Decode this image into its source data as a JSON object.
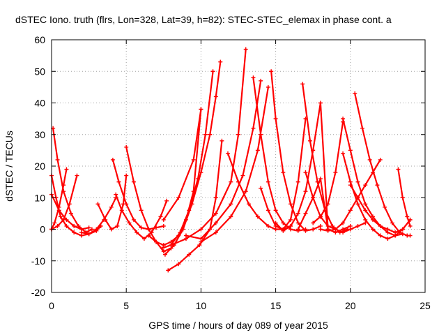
{
  "chart_data": {
    "type": "line",
    "title": "dSTEC Iono. truth (flrs, Lon=328, Lat=39, h=82): STEC-STEC_elemax in phase cont. a",
    "xlabel": "GPS time / hours of day 089 of year 2015",
    "ylabel": "dSTEC  / TECUs",
    "xlim": [
      0,
      25
    ],
    "ylim": [
      -20,
      60
    ],
    "xticks": [
      0,
      5,
      10,
      15,
      20,
      25
    ],
    "yticks": [
      -20,
      -10,
      0,
      10,
      20,
      30,
      40,
      50,
      60
    ],
    "grid": true,
    "legend": "none",
    "color": "#ff0000",
    "marker": "plus",
    "series": [
      {
        "x": [
          0.0,
          0.3,
          0.6,
          1.0,
          1.5,
          2.0,
          2.5,
          3.0,
          3.3
        ],
        "y": [
          17,
          10,
          4,
          1,
          -1,
          -2,
          -1.5,
          -0.5,
          1
        ]
      },
      {
        "x": [
          0.1,
          0.4,
          0.8,
          1.3,
          1.8,
          2.3,
          2.7
        ],
        "y": [
          32,
          22,
          12,
          5,
          1,
          -1,
          0
        ]
      },
      {
        "x": [
          0.0,
          0.2,
          0.5,
          0.8,
          1.0
        ],
        "y": [
          0,
          2,
          7,
          14,
          19
        ]
      },
      {
        "x": [
          0.0,
          0.4,
          0.8,
          1.2,
          1.7
        ],
        "y": [
          0,
          1,
          3,
          8,
          17
        ]
      },
      {
        "x": [
          0.0,
          0.5,
          1.0,
          1.5,
          2.0,
          2.5
        ],
        "y": [
          11,
          6,
          3,
          1,
          0,
          0.5
        ]
      },
      {
        "x": [
          3.1,
          3.6,
          4.0,
          4.4,
          4.8,
          5.0
        ],
        "y": [
          8,
          3,
          0,
          1,
          8,
          17
        ]
      },
      {
        "x": [
          2.0,
          2.5,
          3.0,
          3.5,
          4.0,
          4.3
        ],
        "y": [
          -1,
          -1.5,
          0,
          3,
          7,
          10
        ]
      },
      {
        "x": [
          4.1,
          4.5,
          5.0,
          5.5,
          6.0,
          6.5,
          7.0,
          7.5
        ],
        "y": [
          22,
          15,
          8,
          3,
          0.5,
          0,
          0.5,
          1
        ]
      },
      {
        "x": [
          5.0,
          5.5,
          6.0,
          6.5,
          7.0,
          7.5,
          8.0
        ],
        "y": [
          26,
          15,
          6,
          0,
          -4,
          -7,
          -6
        ]
      },
      {
        "x": [
          4.3,
          4.7,
          5.2,
          5.7,
          6.2,
          6.7,
          7.3,
          7.7
        ],
        "y": [
          11,
          6,
          2,
          -1,
          -3,
          -1,
          4,
          9
        ]
      },
      {
        "x": [
          6.5,
          7.0,
          7.5,
          8.0,
          8.5,
          9.0,
          9.5,
          10.0
        ],
        "y": [
          -2,
          -4,
          -5,
          -4,
          -2,
          3,
          12,
          38
        ]
      },
      {
        "x": [
          7.6,
          8.2,
          8.8,
          9.4,
          10.0,
          10.6,
          11.0,
          11.3
        ],
        "y": [
          -8,
          -5,
          0,
          8,
          18,
          30,
          42,
          53
        ]
      },
      {
        "x": [
          7.4,
          8.0,
          8.6,
          9.2,
          9.8,
          10.3,
          10.8
        ],
        "y": [
          -6,
          -5,
          -1,
          6,
          16,
          30,
          50
        ]
      },
      {
        "x": [
          7.8,
          8.5,
          9.2,
          9.9,
          10.6,
          11.0,
          11.4
        ],
        "y": [
          -13,
          -11,
          -8,
          -5,
          0,
          10,
          28
        ]
      },
      {
        "x": [
          7.5,
          8.5,
          9.5,
          10.0
        ],
        "y": [
          3,
          10,
          22,
          38
        ]
      },
      {
        "x": [
          8.0,
          9.0,
          10.0,
          11.0,
          12.0,
          12.5,
          13.0
        ],
        "y": [
          -5,
          -3,
          0,
          5,
          15,
          30,
          57
        ]
      },
      {
        "x": [
          9.0,
          10.0,
          11.0,
          12.0,
          12.8,
          13.5,
          14.0
        ],
        "y": [
          -2,
          -3,
          2,
          8,
          17,
          32,
          47
        ]
      },
      {
        "x": [
          10.0,
          11.0,
          12.0,
          13.0,
          13.8,
          14.5
        ],
        "y": [
          -4,
          -1,
          4,
          12,
          25,
          45
        ]
      },
      {
        "x": [
          11.8,
          12.5,
          13.2,
          13.8,
          14.5,
          15.0,
          15.5,
          16.0
        ],
        "y": [
          24,
          15,
          8,
          4,
          1,
          0,
          0,
          1
        ]
      },
      {
        "x": [
          13.5,
          14.0,
          14.5,
          15.0,
          15.5,
          16.0,
          16.5,
          17.0
        ],
        "y": [
          48,
          30,
          15,
          6,
          2,
          0,
          -0.5,
          0
        ]
      },
      {
        "x": [
          14.7,
          15.0,
          15.5,
          16.0,
          16.5,
          17.0,
          17.5,
          18.0
        ],
        "y": [
          50,
          35,
          18,
          8,
          2,
          -0.5,
          0,
          1
        ]
      },
      {
        "x": [
          14.0,
          14.5,
          15.0,
          15.5,
          16.0,
          16.5,
          17.0
        ],
        "y": [
          13,
          6,
          1,
          0,
          3,
          15,
          35
        ]
      },
      {
        "x": [
          15.0,
          15.5,
          16.0,
          16.5,
          17.0,
          17.5,
          18.0,
          18.5
        ],
        "y": [
          2,
          -0.5,
          1,
          5,
          12,
          25,
          40,
          0
        ]
      },
      {
        "x": [
          16.8,
          17.3,
          17.8,
          18.3,
          18.8,
          19.3,
          19.8
        ],
        "y": [
          46,
          28,
          15,
          6,
          1,
          -1,
          0
        ]
      },
      {
        "x": [
          16.5,
          17.0,
          17.5,
          18.0,
          18.5,
          19.0,
          19.5,
          20.0
        ],
        "y": [
          0,
          5,
          10,
          16,
          0,
          -1,
          0,
          1
        ]
      },
      {
        "x": [
          17.0,
          17.5,
          18.0,
          18.5,
          19.0,
          19.5,
          20.0,
          20.5,
          21.0
        ],
        "y": [
          18,
          10,
          4,
          1,
          0,
          -1,
          0,
          1,
          2
        ]
      },
      {
        "x": [
          17.5,
          18.0,
          18.5,
          19.0,
          19.5
        ],
        "y": [
          2,
          4,
          8,
          18,
          34
        ]
      },
      {
        "x": [
          19.5,
          20.0,
          20.5,
          21.0,
          21.5,
          22.0,
          22.5,
          23.0,
          23.5
        ],
        "y": [
          35,
          25,
          15,
          8,
          4,
          1,
          -1,
          -2,
          -1.5
        ]
      },
      {
        "x": [
          20.3,
          20.8,
          21.3,
          21.8,
          22.3,
          22.8,
          23.3,
          23.8,
          24.0
        ],
        "y": [
          43,
          32,
          22,
          14,
          7,
          2,
          -1,
          -2,
          -2
        ]
      },
      {
        "x": [
          18.0,
          18.5,
          19.0,
          19.5,
          20.0,
          20.5,
          21.0,
          21.5,
          22.0
        ],
        "y": [
          0,
          -0.5,
          0,
          2,
          6,
          10,
          14,
          18,
          22
        ]
      },
      {
        "x": [
          19.5,
          20.0,
          20.5,
          21.0,
          21.5,
          22.0,
          22.5,
          23.0,
          23.5,
          24.0
        ],
        "y": [
          24,
          15,
          8,
          3,
          0,
          -2,
          -3,
          -2,
          0,
          3
        ]
      },
      {
        "x": [
          20.0,
          20.5,
          21.0,
          21.5,
          22.0,
          22.5,
          23.0,
          23.5,
          24.0
        ],
        "y": [
          14,
          10,
          6,
          3,
          1,
          0,
          -1,
          0,
          3
        ]
      },
      {
        "x": [
          23.2,
          23.5,
          23.8,
          24.0
        ],
        "y": [
          19,
          10,
          4,
          1
        ]
      }
    ]
  }
}
